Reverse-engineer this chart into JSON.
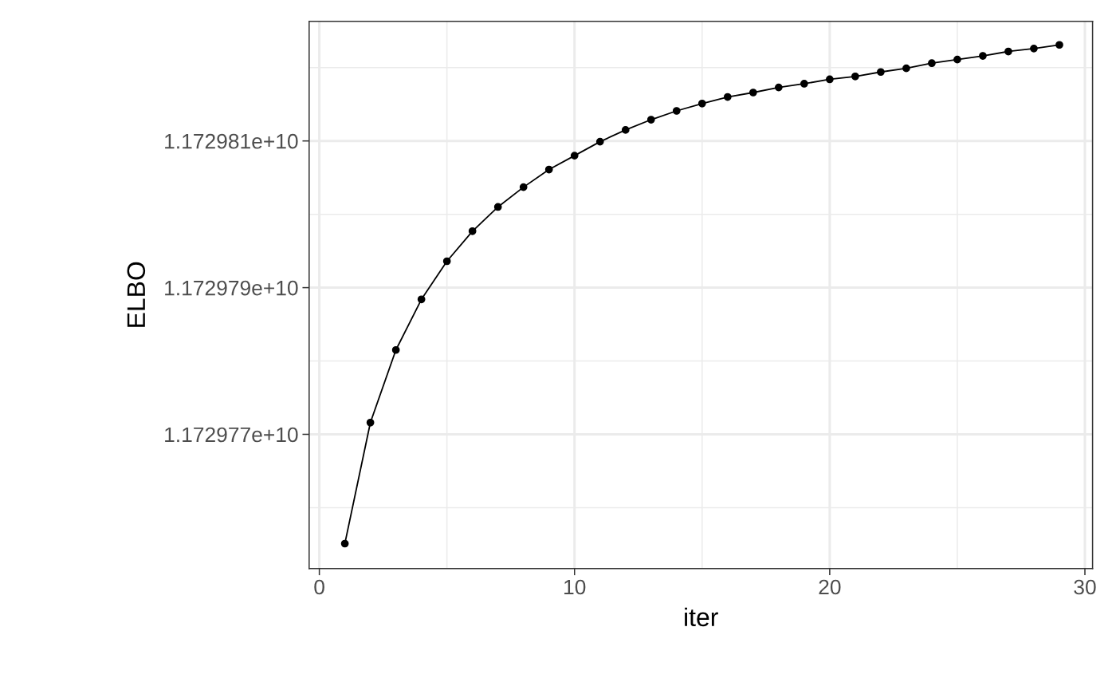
{
  "chart_data": {
    "type": "line",
    "xlabel": "iter",
    "ylabel": "ELBO",
    "x": [
      1,
      2,
      3,
      4,
      5,
      6,
      7,
      8,
      9,
      10,
      11,
      12,
      13,
      14,
      15,
      16,
      17,
      18,
      19,
      20,
      21,
      22,
      23,
      24,
      25,
      26,
      27,
      28,
      29
    ],
    "series": [
      {
        "color": "#000000",
        "values": [
          11729755100,
          11729771600,
          11729781500,
          11729788400,
          11729793600,
          11729797700,
          11729801000,
          11729803700,
          11729806100,
          11729808000,
          11729809900,
          11729811500,
          11729812900,
          11729814100,
          11729815100,
          11729816000,
          11729816600,
          11729817300,
          11729817800,
          11729818400,
          11729818800,
          11729819400,
          11729819900,
          11729820600,
          11729821100,
          11729821600,
          11729822200,
          11729822600,
          11729823100
        ]
      }
    ],
    "xlim": [
      -0.4,
      30.3
    ],
    "xticks": [
      0,
      10,
      20,
      30
    ],
    "ylim": [
      11729751700,
      11729826300
    ],
    "yticks": [
      {
        "value": 11729770000,
        "label": "1.172977e+10"
      },
      {
        "value": 11729790000,
        "label": "1.172979e+10"
      },
      {
        "value": 11729810000,
        "label": "1.172981e+10"
      }
    ],
    "grid": true,
    "marker": "circle",
    "line_style": "solid"
  }
}
